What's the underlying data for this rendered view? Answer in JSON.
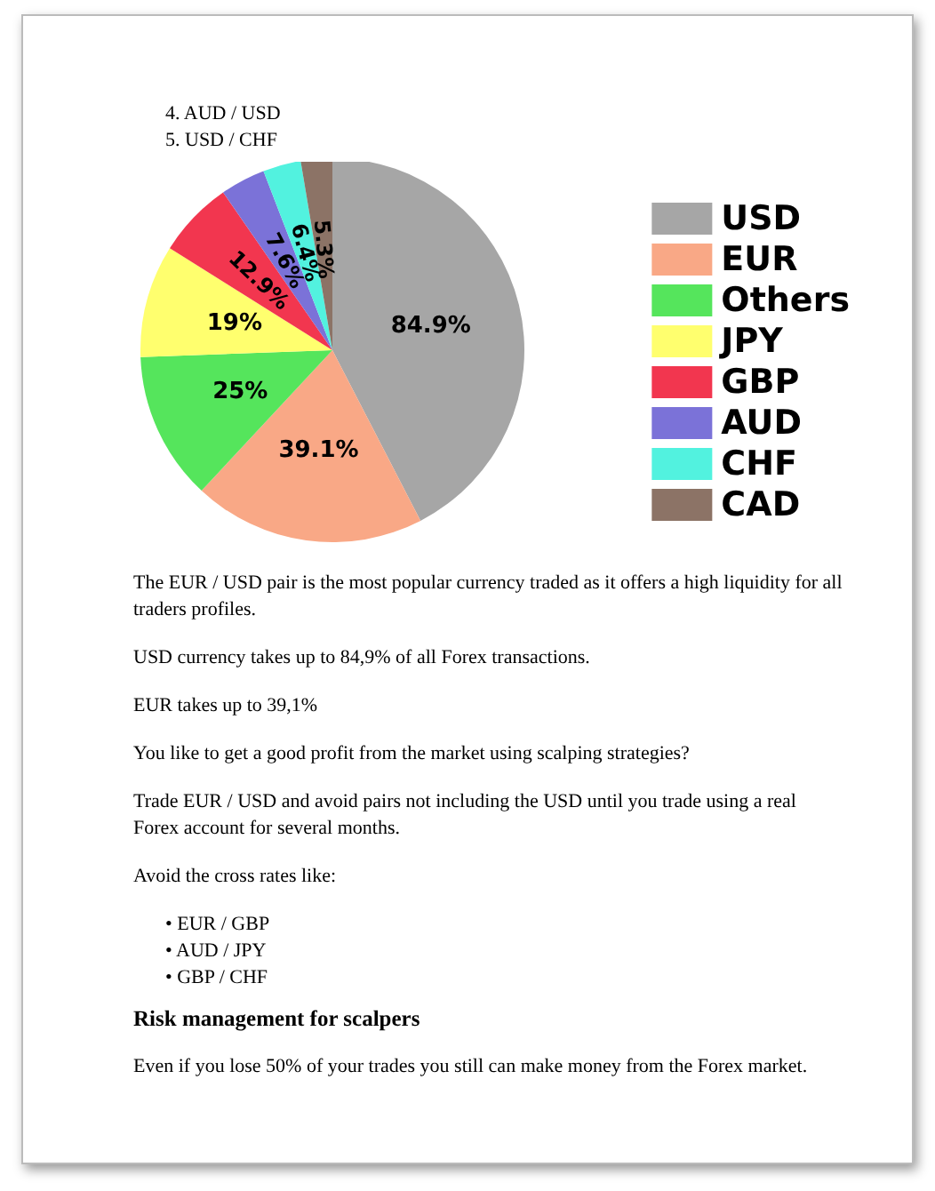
{
  "chart_data": {
    "type": "pie",
    "categories": [
      "USD",
      "EUR",
      "Others",
      "JPY",
      "GBP",
      "AUD",
      "CHF",
      "CAD"
    ],
    "values": [
      84.9,
      39.1,
      25,
      19,
      12.9,
      7.6,
      6.4,
      5.3
    ],
    "colors": [
      "#a6a6a6",
      "#f9a886",
      "#55e55c",
      "#ffff6e",
      "#f2364f",
      "#7b72d8",
      "#52f2df",
      "#8c7366"
    ],
    "value_labels": [
      "84.9%",
      "39.1%",
      "25%",
      "19%",
      "12.9%",
      "7.6%",
      "6.4%",
      "5.3%"
    ],
    "legend": "right",
    "annotations": [
      "4.  AUD / USD",
      "5.  USD / CHF",
      "The EUR / USD pair is the most popular currency traded as it offers a high liquidity for all traders profiles.",
      "USD currency takes up to 84,9% of all Forex transactions.",
      "EUR takes up to 39,1%",
      "You like to get a good profit from the market using scalping strategies?",
      "Trade EUR / USD and avoid pairs not including the USD until you trade using a real Forex account for several months.",
      "Avoid the cross rates like:",
      "•  EUR / GBP",
      "•  AUD / JPY",
      "•  GBP / CHF",
      "Risk management for scalpers",
      "Even if you lose 50% of your trades you still can make money from the Forex market."
    ]
  }
}
